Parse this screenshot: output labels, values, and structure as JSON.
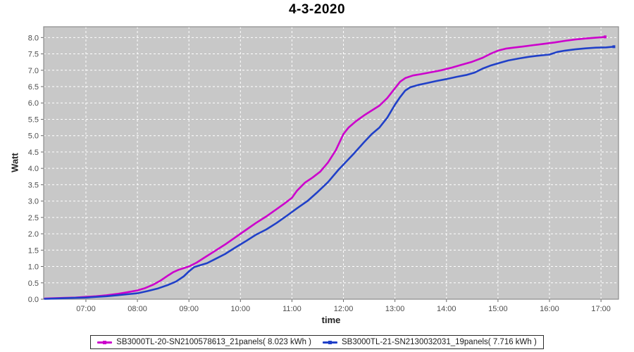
{
  "title": "4-3-2020",
  "chart_data": {
    "type": "line",
    "title": "4-3-2020",
    "xlabel": "time",
    "ylabel": "Watt",
    "plot_bg": "#c8c8c8",
    "grid": "white dashed, on",
    "legend_position": "bottom-center",
    "xlim_hours": [
      6.18,
      17.34
    ],
    "ylim": [
      0,
      8.33
    ],
    "x_tick_hours": [
      7,
      8,
      9,
      10,
      11,
      12,
      13,
      14,
      15,
      16,
      17
    ],
    "x_tick_labels": [
      "07:00",
      "08:00",
      "09:00",
      "10:00",
      "11:00",
      "12:00",
      "13:00",
      "14:00",
      "15:00",
      "16:00",
      "17:00"
    ],
    "y_tick_values": [
      0,
      0.5,
      1,
      1.5,
      2,
      2.5,
      3,
      3.5,
      4,
      4.5,
      5,
      5.5,
      6,
      6.5,
      7,
      7.5,
      8
    ],
    "y_tick_labels": [
      "0.0",
      "0.5",
      "1.0",
      "1.5",
      "2.0",
      "2.5",
      "3.0",
      "3.5",
      "4.0",
      "4.5",
      "5.0",
      "5.5",
      "6.0",
      "6.5",
      "7.0",
      "7.5",
      "8.0"
    ],
    "series": [
      {
        "name": "SB3000TL-20-SN2100578613_21panels( 8.023 kWh )",
        "color": "#cc00cc",
        "points": [
          [
            6.2,
            0.02
          ],
          [
            6.4,
            0.03
          ],
          [
            6.6,
            0.04
          ],
          [
            6.8,
            0.05
          ],
          [
            7.0,
            0.07
          ],
          [
            7.2,
            0.09
          ],
          [
            7.4,
            0.12
          ],
          [
            7.6,
            0.16
          ],
          [
            7.8,
            0.21
          ],
          [
            8.0,
            0.27
          ],
          [
            8.15,
            0.34
          ],
          [
            8.3,
            0.44
          ],
          [
            8.45,
            0.57
          ],
          [
            8.6,
            0.73
          ],
          [
            8.7,
            0.83
          ],
          [
            8.8,
            0.9
          ],
          [
            8.9,
            0.95
          ],
          [
            9.0,
            1.0
          ],
          [
            9.15,
            1.12
          ],
          [
            9.3,
            1.27
          ],
          [
            9.5,
            1.47
          ],
          [
            9.7,
            1.67
          ],
          [
            9.9,
            1.89
          ],
          [
            10.1,
            2.11
          ],
          [
            10.3,
            2.33
          ],
          [
            10.5,
            2.53
          ],
          [
            10.7,
            2.75
          ],
          [
            10.85,
            2.92
          ],
          [
            11.0,
            3.1
          ],
          [
            11.1,
            3.32
          ],
          [
            11.25,
            3.56
          ],
          [
            11.4,
            3.72
          ],
          [
            11.55,
            3.9
          ],
          [
            11.7,
            4.18
          ],
          [
            11.85,
            4.55
          ],
          [
            12.0,
            5.05
          ],
          [
            12.1,
            5.25
          ],
          [
            12.25,
            5.45
          ],
          [
            12.4,
            5.62
          ],
          [
            12.55,
            5.77
          ],
          [
            12.7,
            5.92
          ],
          [
            12.85,
            6.15
          ],
          [
            13.0,
            6.45
          ],
          [
            13.1,
            6.65
          ],
          [
            13.2,
            6.76
          ],
          [
            13.35,
            6.84
          ],
          [
            13.5,
            6.88
          ],
          [
            13.7,
            6.94
          ],
          [
            13.9,
            7.0
          ],
          [
            14.1,
            7.08
          ],
          [
            14.3,
            7.17
          ],
          [
            14.5,
            7.26
          ],
          [
            14.7,
            7.38
          ],
          [
            14.85,
            7.5
          ],
          [
            15.0,
            7.6
          ],
          [
            15.15,
            7.66
          ],
          [
            15.3,
            7.69
          ],
          [
            15.5,
            7.73
          ],
          [
            15.7,
            7.77
          ],
          [
            15.9,
            7.81
          ],
          [
            16.1,
            7.85
          ],
          [
            16.3,
            7.9
          ],
          [
            16.5,
            7.94
          ],
          [
            16.7,
            7.97
          ],
          [
            16.85,
            7.99
          ],
          [
            17.0,
            8.01
          ],
          [
            17.08,
            8.02
          ]
        ]
      },
      {
        "name": "SB3000TL-21-SN2130032031_19panels( 7.716 kWh )",
        "color": "#2040c8",
        "points": [
          [
            6.2,
            0.01
          ],
          [
            6.4,
            0.02
          ],
          [
            6.6,
            0.03
          ],
          [
            6.8,
            0.04
          ],
          [
            7.0,
            0.05
          ],
          [
            7.2,
            0.07
          ],
          [
            7.4,
            0.09
          ],
          [
            7.6,
            0.12
          ],
          [
            7.8,
            0.15
          ],
          [
            8.0,
            0.18
          ],
          [
            8.2,
            0.25
          ],
          [
            8.4,
            0.33
          ],
          [
            8.6,
            0.44
          ],
          [
            8.75,
            0.54
          ],
          [
            8.9,
            0.7
          ],
          [
            9.0,
            0.85
          ],
          [
            9.1,
            0.98
          ],
          [
            9.2,
            1.03
          ],
          [
            9.35,
            1.1
          ],
          [
            9.5,
            1.22
          ],
          [
            9.7,
            1.38
          ],
          [
            9.9,
            1.58
          ],
          [
            10.1,
            1.77
          ],
          [
            10.3,
            1.97
          ],
          [
            10.5,
            2.13
          ],
          [
            10.7,
            2.33
          ],
          [
            10.9,
            2.55
          ],
          [
            11.1,
            2.78
          ],
          [
            11.3,
            3.0
          ],
          [
            11.5,
            3.28
          ],
          [
            11.7,
            3.58
          ],
          [
            11.9,
            3.95
          ],
          [
            12.05,
            4.2
          ],
          [
            12.2,
            4.45
          ],
          [
            12.4,
            4.8
          ],
          [
            12.55,
            5.05
          ],
          [
            12.7,
            5.25
          ],
          [
            12.85,
            5.55
          ],
          [
            13.0,
            5.95
          ],
          [
            13.1,
            6.18
          ],
          [
            13.2,
            6.38
          ],
          [
            13.3,
            6.48
          ],
          [
            13.45,
            6.55
          ],
          [
            13.6,
            6.6
          ],
          [
            13.8,
            6.67
          ],
          [
            14.0,
            6.73
          ],
          [
            14.2,
            6.8
          ],
          [
            14.4,
            6.86
          ],
          [
            14.55,
            6.93
          ],
          [
            14.7,
            7.05
          ],
          [
            14.85,
            7.14
          ],
          [
            15.0,
            7.21
          ],
          [
            15.2,
            7.3
          ],
          [
            15.4,
            7.36
          ],
          [
            15.6,
            7.41
          ],
          [
            15.8,
            7.45
          ],
          [
            16.0,
            7.48
          ],
          [
            16.15,
            7.56
          ],
          [
            16.3,
            7.6
          ],
          [
            16.5,
            7.64
          ],
          [
            16.7,
            7.67
          ],
          [
            16.9,
            7.69
          ],
          [
            17.1,
            7.7
          ],
          [
            17.25,
            7.72
          ]
        ]
      }
    ]
  }
}
